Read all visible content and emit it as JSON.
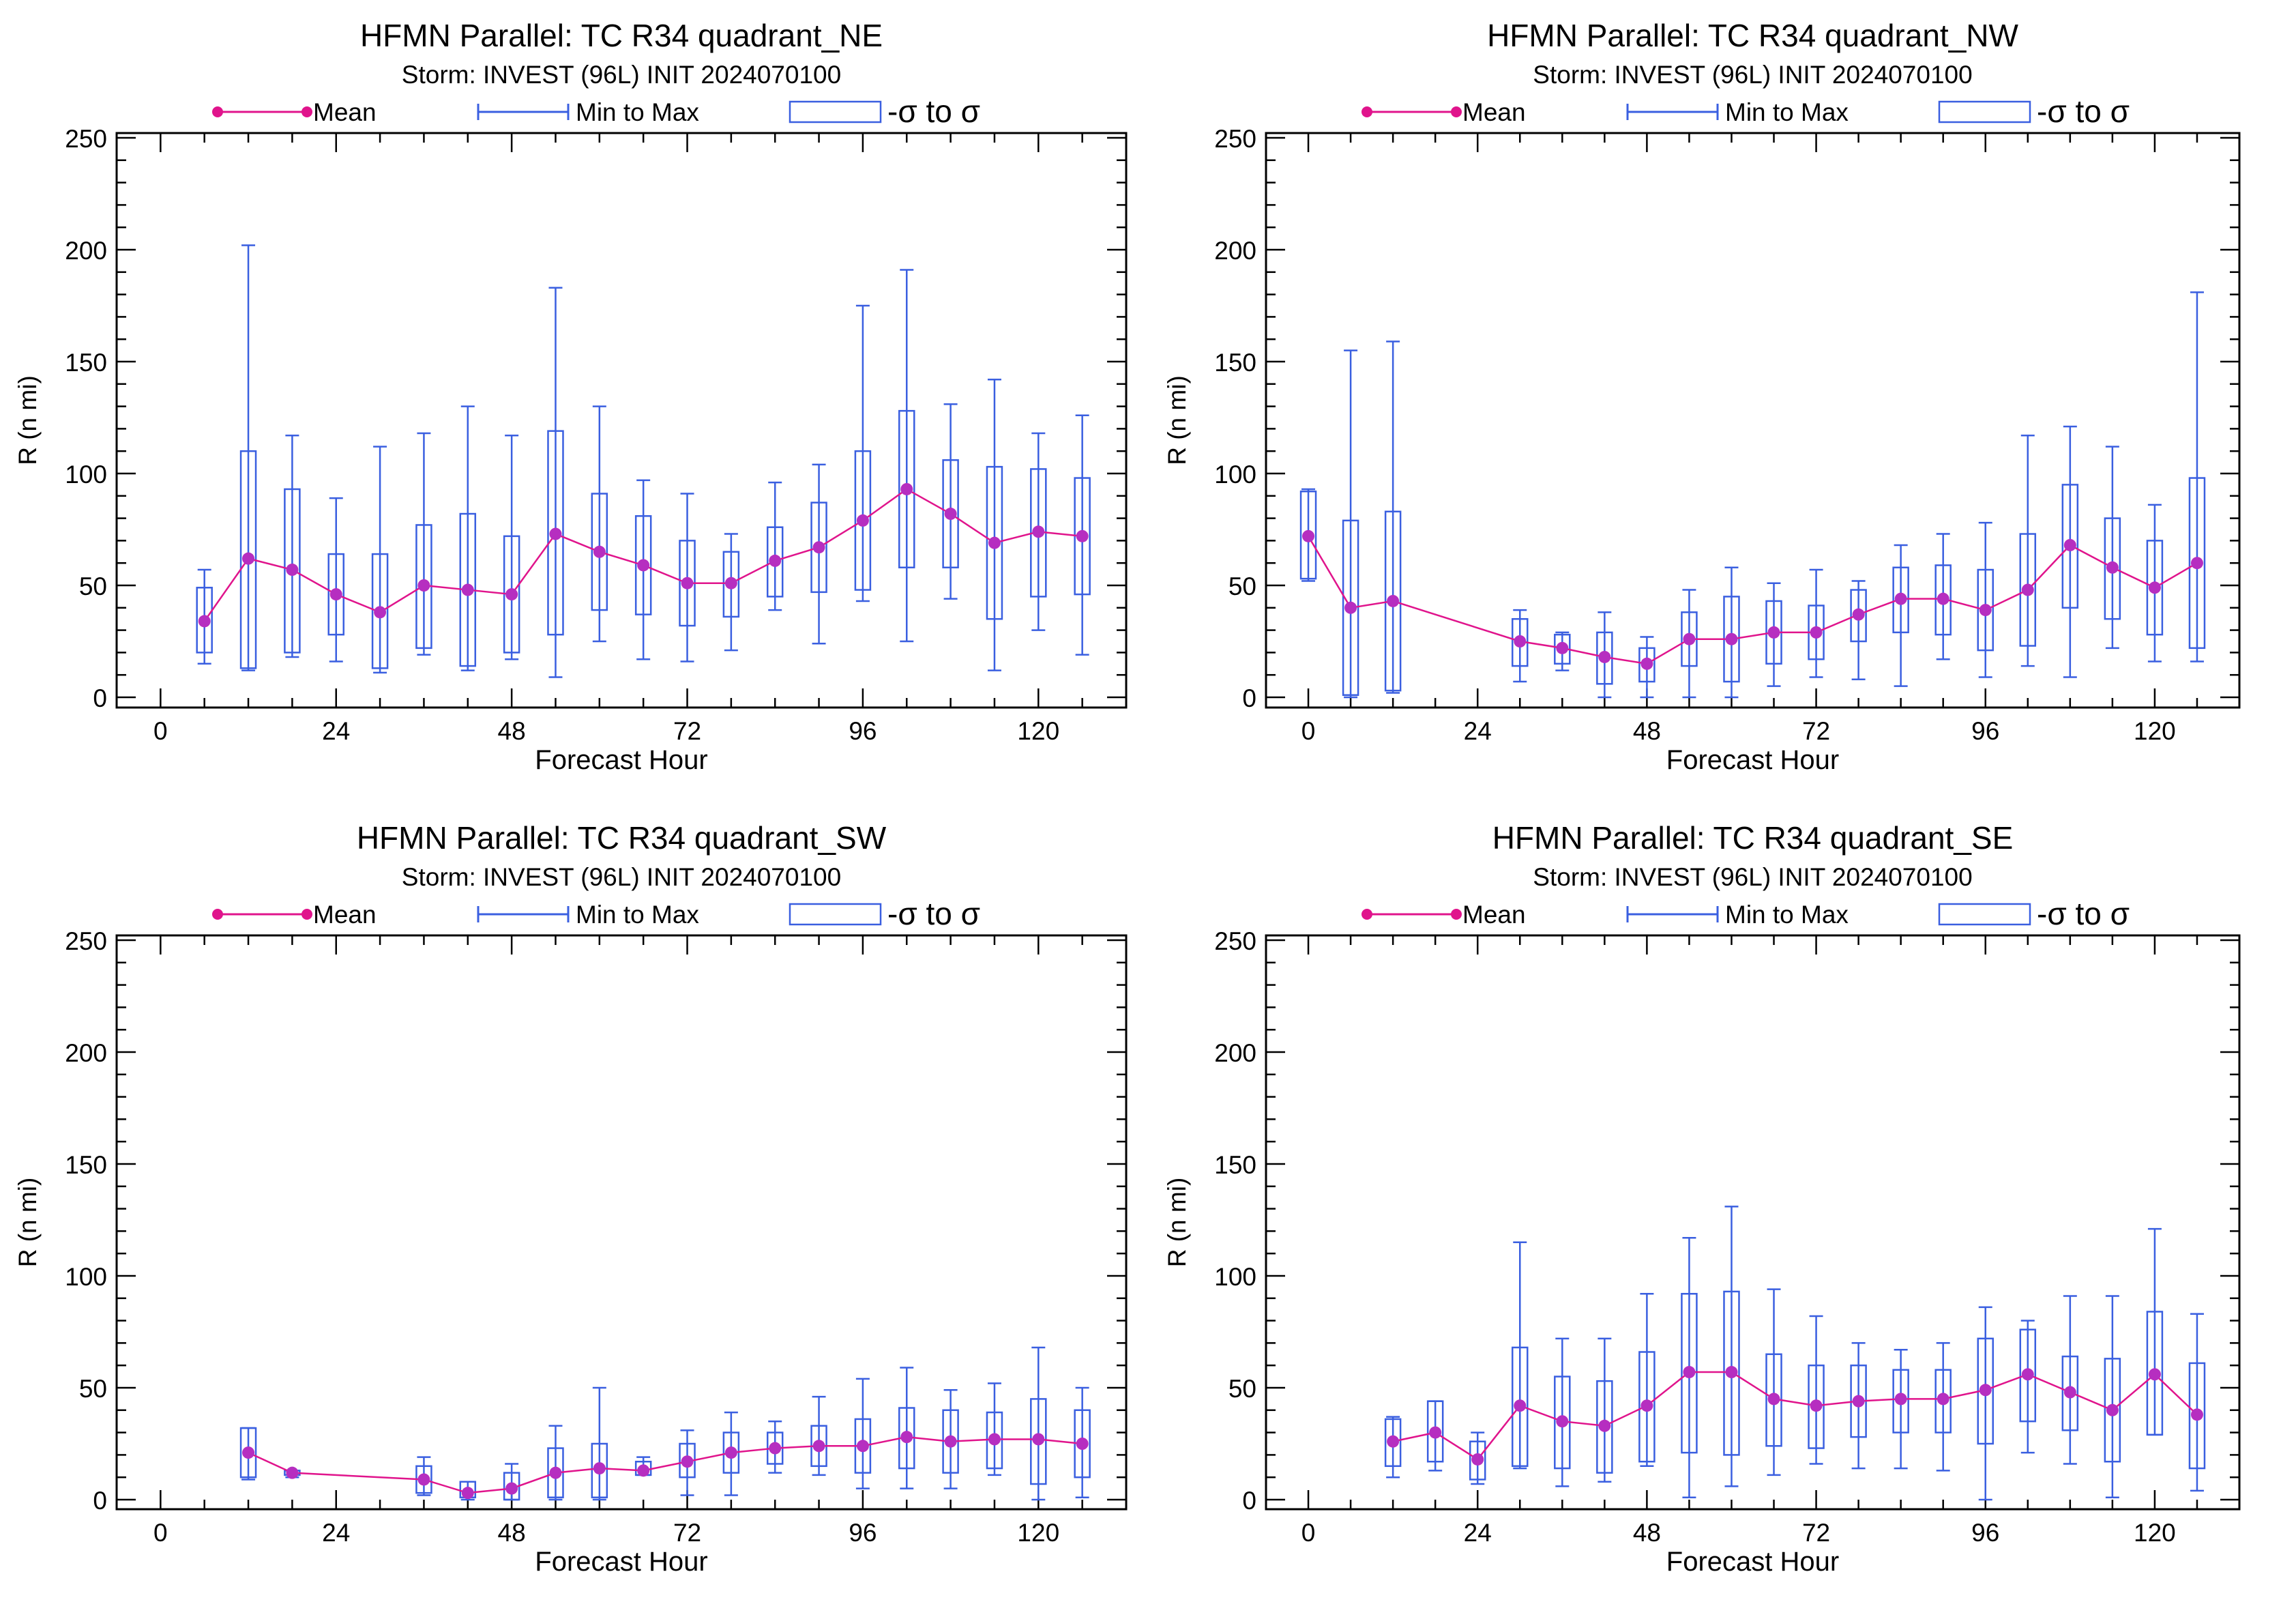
{
  "common": {
    "subtitle": "Storm: INVEST (96L) INIT 2024070100",
    "legend": {
      "mean": "Mean",
      "minmax": "Min to Max",
      "sigma": "-σ to σ"
    },
    "xlabel": "Forecast Hour",
    "ylabel": "R (n mi)",
    "colors": {
      "mean": "#e0148c",
      "mean_marker": "#b62ec0",
      "whisker": "#3a5fe0",
      "box": "#3a5fe0"
    }
  },
  "chart_data": [
    {
      "type": "box",
      "title": "HFMN Parallel: TC  R34 quadrant_NE",
      "xlabel": "Forecast Hour",
      "ylabel": "R (n mi)",
      "xlim": [
        -6,
        132
      ],
      "ylim": [
        0,
        250
      ],
      "xticks": [
        "0",
        "24",
        "48",
        "72",
        "96",
        "120"
      ],
      "yticks": [
        "0",
        "50",
        "100",
        "150",
        "200",
        "250"
      ],
      "series": [
        {
          "x": 6,
          "min": 15,
          "q1": 20,
          "q3": 49,
          "max": 57,
          "mean": 34
        },
        {
          "x": 12,
          "min": 12,
          "q1": 13,
          "q3": 110,
          "max": 202,
          "mean": 62
        },
        {
          "x": 18,
          "min": 18,
          "q1": 20,
          "q3": 93,
          "max": 117,
          "mean": 57
        },
        {
          "x": 24,
          "min": 16,
          "q1": 28,
          "q3": 64,
          "max": 89,
          "mean": 46
        },
        {
          "x": 30,
          "min": 11,
          "q1": 13,
          "q3": 64,
          "max": 112,
          "mean": 38
        },
        {
          "x": 36,
          "min": 19,
          "q1": 22,
          "q3": 77,
          "max": 118,
          "mean": 50
        },
        {
          "x": 42,
          "min": 12,
          "q1": 14,
          "q3": 82,
          "max": 130,
          "mean": 48
        },
        {
          "x": 48,
          "min": 17,
          "q1": 20,
          "q3": 72,
          "max": 117,
          "mean": 46
        },
        {
          "x": 54,
          "min": 9,
          "q1": 28,
          "q3": 119,
          "max": 183,
          "mean": 73
        },
        {
          "x": 60,
          "min": 25,
          "q1": 39,
          "q3": 91,
          "max": 130,
          "mean": 65
        },
        {
          "x": 66,
          "min": 17,
          "q1": 37,
          "q3": 81,
          "max": 97,
          "mean": 59
        },
        {
          "x": 72,
          "min": 16,
          "q1": 32,
          "q3": 70,
          "max": 91,
          "mean": 51
        },
        {
          "x": 78,
          "min": 21,
          "q1": 36,
          "q3": 65,
          "max": 73,
          "mean": 51
        },
        {
          "x": 84,
          "min": 39,
          "q1": 45,
          "q3": 76,
          "max": 96,
          "mean": 61
        },
        {
          "x": 90,
          "min": 24,
          "q1": 47,
          "q3": 87,
          "max": 104,
          "mean": 67
        },
        {
          "x": 96,
          "min": 43,
          "q1": 48,
          "q3": 110,
          "max": 175,
          "mean": 79
        },
        {
          "x": 102,
          "min": 25,
          "q1": 58,
          "q3": 128,
          "max": 191,
          "mean": 93
        },
        {
          "x": 108,
          "min": 44,
          "q1": 58,
          "q3": 106,
          "max": 131,
          "mean": 82
        },
        {
          "x": 114,
          "min": 12,
          "q1": 35,
          "q3": 103,
          "max": 142,
          "mean": 69
        },
        {
          "x": 120,
          "min": 30,
          "q1": 45,
          "q3": 102,
          "max": 118,
          "mean": 74
        },
        {
          "x": 126,
          "min": 19,
          "q1": 46,
          "q3": 98,
          "max": 126,
          "mean": 72
        }
      ]
    },
    {
      "type": "box",
      "title": "HFMN Parallel: TC  R34 quadrant_NW",
      "xlabel": "Forecast Hour",
      "ylabel": "R (n mi)",
      "xlim": [
        -6,
        132
      ],
      "ylim": [
        0,
        250
      ],
      "xticks": [
        "0",
        "24",
        "48",
        "72",
        "96",
        "120"
      ],
      "yticks": [
        "0",
        "50",
        "100",
        "150",
        "200",
        "250"
      ],
      "series": [
        {
          "x": 0,
          "min": 52,
          "q1": 53,
          "q3": 92,
          "max": 93,
          "mean": 72
        },
        {
          "x": 6,
          "min": 0,
          "q1": 1,
          "q3": 79,
          "max": 155,
          "mean": 40
        },
        {
          "x": 12,
          "min": 2,
          "q1": 3,
          "q3": 83,
          "max": 159,
          "mean": 43
        },
        {
          "x": 30,
          "min": 7,
          "q1": 14,
          "q3": 35,
          "max": 39,
          "mean": 25
        },
        {
          "x": 36,
          "min": 12,
          "q1": 15,
          "q3": 28,
          "max": 29,
          "mean": 22
        },
        {
          "x": 42,
          "min": 0,
          "q1": 6,
          "q3": 29,
          "max": 38,
          "mean": 18
        },
        {
          "x": 48,
          "min": 0,
          "q1": 7,
          "q3": 22,
          "max": 27,
          "mean": 15
        },
        {
          "x": 54,
          "min": 0,
          "q1": 14,
          "q3": 38,
          "max": 48,
          "mean": 26
        },
        {
          "x": 60,
          "min": 0,
          "q1": 7,
          "q3": 45,
          "max": 58,
          "mean": 26
        },
        {
          "x": 66,
          "min": 5,
          "q1": 15,
          "q3": 43,
          "max": 51,
          "mean": 29
        },
        {
          "x": 72,
          "min": 9,
          "q1": 17,
          "q3": 41,
          "max": 57,
          "mean": 29
        },
        {
          "x": 78,
          "min": 8,
          "q1": 25,
          "q3": 48,
          "max": 52,
          "mean": 37
        },
        {
          "x": 84,
          "min": 5,
          "q1": 29,
          "q3": 58,
          "max": 68,
          "mean": 44
        },
        {
          "x": 90,
          "min": 17,
          "q1": 28,
          "q3": 59,
          "max": 73,
          "mean": 44
        },
        {
          "x": 96,
          "min": 9,
          "q1": 21,
          "q3": 57,
          "max": 78,
          "mean": 39
        },
        {
          "x": 102,
          "min": 14,
          "q1": 23,
          "q3": 73,
          "max": 117,
          "mean": 48
        },
        {
          "x": 108,
          "min": 9,
          "q1": 40,
          "q3": 95,
          "max": 121,
          "mean": 68
        },
        {
          "x": 114,
          "min": 22,
          "q1": 35,
          "q3": 80,
          "max": 112,
          "mean": 58
        },
        {
          "x": 120,
          "min": 16,
          "q1": 28,
          "q3": 70,
          "max": 86,
          "mean": 49
        },
        {
          "x": 126,
          "min": 16,
          "q1": 22,
          "q3": 98,
          "max": 181,
          "mean": 60
        }
      ]
    },
    {
      "type": "box",
      "title": "HFMN Parallel: TC  R34 quadrant_SW",
      "xlabel": "Forecast Hour",
      "ylabel": "R (n mi)",
      "xlim": [
        -6,
        132
      ],
      "ylim": [
        0,
        250
      ],
      "xticks": [
        "0",
        "24",
        "48",
        "72",
        "96",
        "120"
      ],
      "yticks": [
        "0",
        "50",
        "100",
        "150",
        "200",
        "250"
      ],
      "series": [
        {
          "x": 12,
          "min": 9,
          "q1": 10,
          "q3": 32,
          "max": 32,
          "mean": 21
        },
        {
          "x": 18,
          "min": 10,
          "q1": 11,
          "q3": 13,
          "max": 13,
          "mean": 12
        },
        {
          "x": 36,
          "min": 2,
          "q1": 3,
          "q3": 15,
          "max": 19,
          "mean": 9
        },
        {
          "x": 42,
          "min": 0,
          "q1": 1,
          "q3": 8,
          "max": 8,
          "mean": 3
        },
        {
          "x": 48,
          "min": 0,
          "q1": 0,
          "q3": 12,
          "max": 16,
          "mean": 5
        },
        {
          "x": 54,
          "min": 0,
          "q1": 1,
          "q3": 23,
          "max": 33,
          "mean": 12
        },
        {
          "x": 60,
          "min": 0,
          "q1": 1,
          "q3": 25,
          "max": 50,
          "mean": 14
        },
        {
          "x": 66,
          "min": 11,
          "q1": 11,
          "q3": 17,
          "max": 19,
          "mean": 13
        },
        {
          "x": 72,
          "min": 2,
          "q1": 10,
          "q3": 25,
          "max": 31,
          "mean": 17
        },
        {
          "x": 78,
          "min": 2,
          "q1": 12,
          "q3": 30,
          "max": 39,
          "mean": 21
        },
        {
          "x": 84,
          "min": 12,
          "q1": 16,
          "q3": 30,
          "max": 35,
          "mean": 23
        },
        {
          "x": 90,
          "min": 11,
          "q1": 15,
          "q3": 33,
          "max": 46,
          "mean": 24
        },
        {
          "x": 96,
          "min": 5,
          "q1": 12,
          "q3": 36,
          "max": 54,
          "mean": 24
        },
        {
          "x": 102,
          "min": 5,
          "q1": 14,
          "q3": 41,
          "max": 59,
          "mean": 28
        },
        {
          "x": 108,
          "min": 5,
          "q1": 12,
          "q3": 40,
          "max": 49,
          "mean": 26
        },
        {
          "x": 114,
          "min": 11,
          "q1": 14,
          "q3": 39,
          "max": 52,
          "mean": 27
        },
        {
          "x": 120,
          "min": 0,
          "q1": 7,
          "q3": 45,
          "max": 68,
          "mean": 27
        },
        {
          "x": 126,
          "min": 1,
          "q1": 10,
          "q3": 40,
          "max": 50,
          "mean": 25
        }
      ]
    },
    {
      "type": "box",
      "title": "HFMN Parallel: TC  R34 quadrant_SE",
      "xlabel": "Forecast Hour",
      "ylabel": "R (n mi)",
      "xlim": [
        -6,
        132
      ],
      "ylim": [
        0,
        250
      ],
      "xticks": [
        "0",
        "24",
        "48",
        "72",
        "96",
        "120"
      ],
      "yticks": [
        "0",
        "50",
        "100",
        "150",
        "200",
        "250"
      ],
      "series": [
        {
          "x": 12,
          "min": 10,
          "q1": 15,
          "q3": 36,
          "max": 37,
          "mean": 26
        },
        {
          "x": 18,
          "min": 13,
          "q1": 17,
          "q3": 44,
          "max": 44,
          "mean": 30
        },
        {
          "x": 24,
          "min": 7,
          "q1": 9,
          "q3": 26,
          "max": 30,
          "mean": 18
        },
        {
          "x": 30,
          "min": 14,
          "q1": 15,
          "q3": 68,
          "max": 115,
          "mean": 42
        },
        {
          "x": 36,
          "min": 6,
          "q1": 14,
          "q3": 55,
          "max": 72,
          "mean": 35
        },
        {
          "x": 42,
          "min": 8,
          "q1": 12,
          "q3": 53,
          "max": 72,
          "mean": 33
        },
        {
          "x": 48,
          "min": 15,
          "q1": 17,
          "q3": 66,
          "max": 92,
          "mean": 42
        },
        {
          "x": 54,
          "min": 1,
          "q1": 21,
          "q3": 92,
          "max": 117,
          "mean": 57
        },
        {
          "x": 60,
          "min": 6,
          "q1": 20,
          "q3": 93,
          "max": 131,
          "mean": 57
        },
        {
          "x": 66,
          "min": 11,
          "q1": 24,
          "q3": 65,
          "max": 94,
          "mean": 45
        },
        {
          "x": 72,
          "min": 16,
          "q1": 23,
          "q3": 60,
          "max": 82,
          "mean": 42
        },
        {
          "x": 78,
          "min": 14,
          "q1": 28,
          "q3": 60,
          "max": 70,
          "mean": 44
        },
        {
          "x": 84,
          "min": 14,
          "q1": 30,
          "q3": 58,
          "max": 67,
          "mean": 45
        },
        {
          "x": 90,
          "min": 13,
          "q1": 30,
          "q3": 58,
          "max": 70,
          "mean": 45
        },
        {
          "x": 96,
          "min": 0,
          "q1": 25,
          "q3": 72,
          "max": 86,
          "mean": 49
        },
        {
          "x": 102,
          "min": 21,
          "q1": 35,
          "q3": 76,
          "max": 80,
          "mean": 56
        },
        {
          "x": 108,
          "min": 16,
          "q1": 31,
          "q3": 64,
          "max": 91,
          "mean": 48
        },
        {
          "x": 114,
          "min": 1,
          "q1": 17,
          "q3": 63,
          "max": 91,
          "mean": 40
        },
        {
          "x": 120,
          "min": 29,
          "q1": 29,
          "q3": 84,
          "max": 121,
          "mean": 56
        },
        {
          "x": 126,
          "min": 4,
          "q1": 14,
          "q3": 61,
          "max": 83,
          "mean": 38
        }
      ]
    }
  ]
}
